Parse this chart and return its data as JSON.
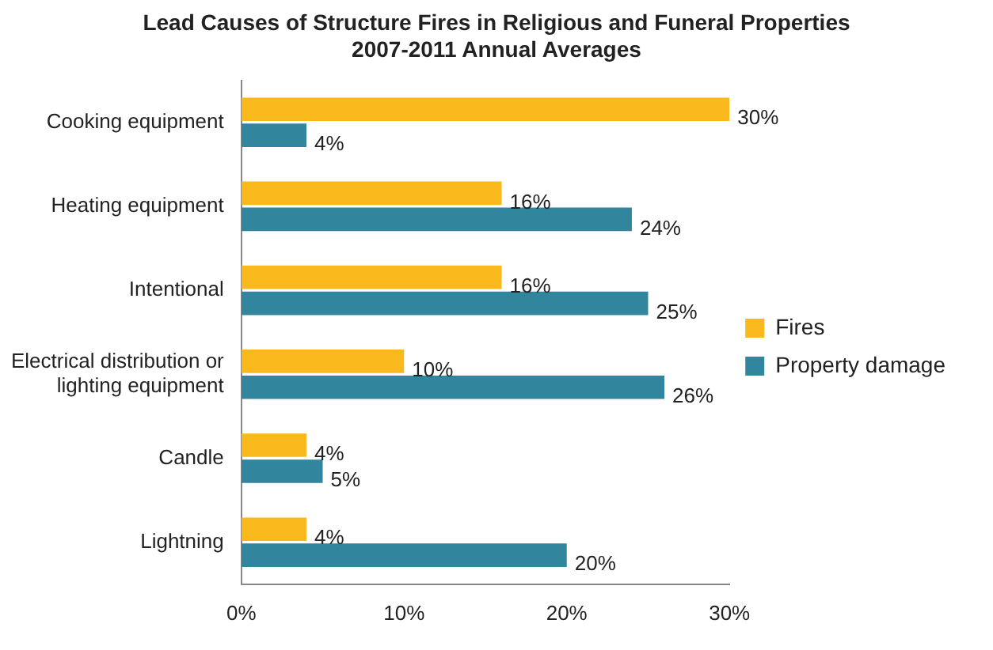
{
  "chart_data": {
    "type": "bar",
    "orientation": "horizontal",
    "title": "Lead Causes of Structure Fires in Religious and Funeral Properties",
    "subtitle": "2007-2011 Annual Averages",
    "categories": [
      "Cooking equipment",
      "Heating equipment",
      "Intentional",
      "Electrical distribution or lighting equipment",
      "Candle",
      "Lightning"
    ],
    "series": [
      {
        "name": "Fires",
        "color": "#f9b81b",
        "values": [
          30,
          16,
          16,
          10,
          4,
          4
        ],
        "value_labels": [
          "30%",
          "16%",
          "16%",
          "10%",
          "4%",
          "4%"
        ]
      },
      {
        "name": "Property damage",
        "color": "#31859c",
        "values": [
          4,
          24,
          25,
          26,
          5,
          20
        ],
        "value_labels": [
          "4%",
          "24%",
          "25%",
          "26%",
          "5%",
          "20%"
        ]
      }
    ],
    "xlim": [
      0,
      30
    ],
    "xticks": [
      {
        "value": 0,
        "label": "0%"
      },
      {
        "value": 10,
        "label": "10%"
      },
      {
        "value": 20,
        "label": "20%"
      },
      {
        "value": 30,
        "label": "30%"
      }
    ],
    "grid": false,
    "legend": "right"
  }
}
